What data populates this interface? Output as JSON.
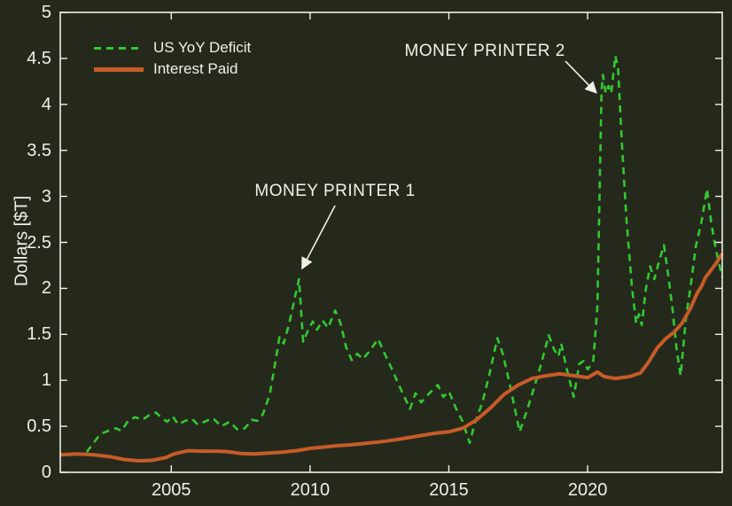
{
  "figure": {
    "background": "#25291c",
    "frame_color": "#f0efe8",
    "text_color": "#f0efe8"
  },
  "chart_data": {
    "type": "line",
    "title": "",
    "xlabel": "",
    "ylabel": "Dollars [$T]",
    "xlim": [
      2001,
      2024.85
    ],
    "ylim": [
      0,
      5
    ],
    "grid": false,
    "xticks": {
      "values": [
        2005,
        2010,
        2015,
        2020
      ],
      "labels": [
        "2005",
        "2010",
        "2015",
        "2020"
      ]
    },
    "yticks": {
      "values": [
        0,
        0.5,
        1,
        1.5,
        2,
        2.5,
        3,
        3.5,
        4,
        4.5,
        5
      ],
      "labels": [
        "0",
        "0.5",
        "1",
        "1.5",
        "2",
        "2.5",
        "3",
        "3.5",
        "4",
        "4.5",
        "5"
      ]
    },
    "legend": {
      "position": "upper-left",
      "frame": false
    },
    "series": [
      {
        "name": "US YoY Deficit",
        "color": "#32c832",
        "style": "dashed",
        "width": 2.6,
        "points": [
          [
            2001.95,
            0.22
          ],
          [
            2002.15,
            0.3
          ],
          [
            2002.35,
            0.38
          ],
          [
            2002.55,
            0.43
          ],
          [
            2002.8,
            0.46
          ],
          [
            2003.0,
            0.48
          ],
          [
            2003.2,
            0.45
          ],
          [
            2003.45,
            0.56
          ],
          [
            2003.7,
            0.6
          ],
          [
            2003.95,
            0.57
          ],
          [
            2004.2,
            0.62
          ],
          [
            2004.45,
            0.65
          ],
          [
            2004.65,
            0.59
          ],
          [
            2004.85,
            0.55
          ],
          [
            2005.05,
            0.61
          ],
          [
            2005.25,
            0.52
          ],
          [
            2005.5,
            0.56
          ],
          [
            2005.75,
            0.58
          ],
          [
            2005.95,
            0.52
          ],
          [
            2006.2,
            0.55
          ],
          [
            2006.5,
            0.59
          ],
          [
            2006.8,
            0.5
          ],
          [
            2007.1,
            0.55
          ],
          [
            2007.4,
            0.46
          ],
          [
            2007.65,
            0.48
          ],
          [
            2007.9,
            0.57
          ],
          [
            2008.1,
            0.56
          ],
          [
            2008.3,
            0.63
          ],
          [
            2008.55,
            0.85
          ],
          [
            2008.75,
            1.2
          ],
          [
            2008.9,
            1.47
          ],
          [
            2009.05,
            1.4
          ],
          [
            2009.25,
            1.62
          ],
          [
            2009.45,
            1.9
          ],
          [
            2009.6,
            2.1
          ],
          [
            2009.75,
            1.42
          ],
          [
            2009.95,
            1.56
          ],
          [
            2010.1,
            1.64
          ],
          [
            2010.25,
            1.55
          ],
          [
            2010.45,
            1.65
          ],
          [
            2010.65,
            1.57
          ],
          [
            2010.9,
            1.76
          ],
          [
            2011.1,
            1.62
          ],
          [
            2011.3,
            1.36
          ],
          [
            2011.5,
            1.22
          ],
          [
            2011.7,
            1.29
          ],
          [
            2011.9,
            1.23
          ],
          [
            2012.15,
            1.32
          ],
          [
            2012.45,
            1.45
          ],
          [
            2012.7,
            1.28
          ],
          [
            2012.95,
            1.12
          ],
          [
            2013.2,
            0.95
          ],
          [
            2013.6,
            0.69
          ],
          [
            2013.8,
            0.86
          ],
          [
            2014.0,
            0.76
          ],
          [
            2014.3,
            0.86
          ],
          [
            2014.6,
            0.95
          ],
          [
            2014.8,
            0.82
          ],
          [
            2015.0,
            0.88
          ],
          [
            2015.25,
            0.7
          ],
          [
            2015.5,
            0.55
          ],
          [
            2015.75,
            0.32
          ],
          [
            2015.95,
            0.55
          ],
          [
            2016.2,
            0.75
          ],
          [
            2016.45,
            1.05
          ],
          [
            2016.75,
            1.46
          ],
          [
            2016.95,
            1.28
          ],
          [
            2017.2,
            0.95
          ],
          [
            2017.55,
            0.44
          ],
          [
            2017.8,
            0.66
          ],
          [
            2018.05,
            0.9
          ],
          [
            2018.3,
            1.15
          ],
          [
            2018.6,
            1.49
          ],
          [
            2018.8,
            1.33
          ],
          [
            2018.95,
            1.26
          ],
          [
            2019.05,
            1.4
          ],
          [
            2019.25,
            1.12
          ],
          [
            2019.5,
            0.82
          ],
          [
            2019.7,
            1.18
          ],
          [
            2019.85,
            1.21
          ],
          [
            2020.0,
            1.12
          ],
          [
            2020.2,
            1.2
          ],
          [
            2020.35,
            1.8
          ],
          [
            2020.5,
            4.15
          ],
          [
            2020.55,
            4.32
          ],
          [
            2020.65,
            4.12
          ],
          [
            2020.75,
            4.2
          ],
          [
            2020.85,
            4.12
          ],
          [
            2021.0,
            4.53
          ],
          [
            2021.1,
            4.38
          ],
          [
            2021.25,
            3.5
          ],
          [
            2021.4,
            2.75
          ],
          [
            2021.6,
            2.0
          ],
          [
            2021.75,
            1.62
          ],
          [
            2021.85,
            1.72
          ],
          [
            2021.95,
            1.6
          ],
          [
            2022.1,
            2.0
          ],
          [
            2022.25,
            2.24
          ],
          [
            2022.4,
            2.1
          ],
          [
            2022.6,
            2.32
          ],
          [
            2022.75,
            2.47
          ],
          [
            2022.9,
            2.15
          ],
          [
            2023.05,
            1.8
          ],
          [
            2023.2,
            1.35
          ],
          [
            2023.35,
            1.05
          ],
          [
            2023.55,
            1.7
          ],
          [
            2023.7,
            2.0
          ],
          [
            2023.9,
            2.46
          ],
          [
            2024.1,
            2.72
          ],
          [
            2024.3,
            3.08
          ],
          [
            2024.45,
            2.72
          ],
          [
            2024.6,
            2.45
          ],
          [
            2024.75,
            2.25
          ],
          [
            2024.85,
            2.12
          ]
        ]
      },
      {
        "name": "Interest Paid",
        "color": "#c75b28",
        "style": "solid",
        "width": 4,
        "points": [
          [
            2001.0,
            0.19
          ],
          [
            2001.6,
            0.2
          ],
          [
            2002.2,
            0.19
          ],
          [
            2002.8,
            0.17
          ],
          [
            2003.3,
            0.14
          ],
          [
            2003.8,
            0.125
          ],
          [
            2004.3,
            0.13
          ],
          [
            2004.8,
            0.16
          ],
          [
            2005.1,
            0.2
          ],
          [
            2005.6,
            0.235
          ],
          [
            2006.1,
            0.23
          ],
          [
            2006.6,
            0.23
          ],
          [
            2007.0,
            0.225
          ],
          [
            2007.5,
            0.205
          ],
          [
            2008.0,
            0.2
          ],
          [
            2008.5,
            0.21
          ],
          [
            2009.0,
            0.22
          ],
          [
            2009.5,
            0.235
          ],
          [
            2010.0,
            0.26
          ],
          [
            2010.5,
            0.275
          ],
          [
            2011.0,
            0.29
          ],
          [
            2011.5,
            0.3
          ],
          [
            2012.0,
            0.315
          ],
          [
            2012.5,
            0.33
          ],
          [
            2013.0,
            0.35
          ],
          [
            2013.5,
            0.375
          ],
          [
            2014.0,
            0.4
          ],
          [
            2014.5,
            0.425
          ],
          [
            2015.0,
            0.44
          ],
          [
            2015.5,
            0.48
          ],
          [
            2016.0,
            0.57
          ],
          [
            2016.5,
            0.7
          ],
          [
            2017.0,
            0.85
          ],
          [
            2017.5,
            0.95
          ],
          [
            2018.0,
            1.02
          ],
          [
            2018.5,
            1.05
          ],
          [
            2019.0,
            1.07
          ],
          [
            2019.5,
            1.05
          ],
          [
            2020.0,
            1.03
          ],
          [
            2020.35,
            1.09
          ],
          [
            2020.6,
            1.04
          ],
          [
            2021.0,
            1.02
          ],
          [
            2021.5,
            1.04
          ],
          [
            2021.9,
            1.08
          ],
          [
            2022.2,
            1.2
          ],
          [
            2022.5,
            1.35
          ],
          [
            2022.8,
            1.45
          ],
          [
            2023.1,
            1.52
          ],
          [
            2023.4,
            1.62
          ],
          [
            2023.7,
            1.78
          ],
          [
            2023.95,
            1.95
          ],
          [
            2024.1,
            2.02
          ],
          [
            2024.25,
            2.12
          ],
          [
            2024.45,
            2.2
          ],
          [
            2024.65,
            2.28
          ],
          [
            2024.85,
            2.38
          ]
        ]
      }
    ],
    "annotations": [
      {
        "text": "MONEY PRINTER 1",
        "text_at": [
          2010.9,
          3.05
        ],
        "arrow_from": [
          2010.9,
          2.9
        ],
        "arrow_to": [
          2009.72,
          2.22
        ]
      },
      {
        "text": "MONEY PRINTER 2",
        "text_at": [
          2016.3,
          4.58
        ],
        "arrow_from": [
          2019.2,
          4.47
        ],
        "arrow_to": [
          2020.3,
          4.13
        ]
      }
    ]
  }
}
